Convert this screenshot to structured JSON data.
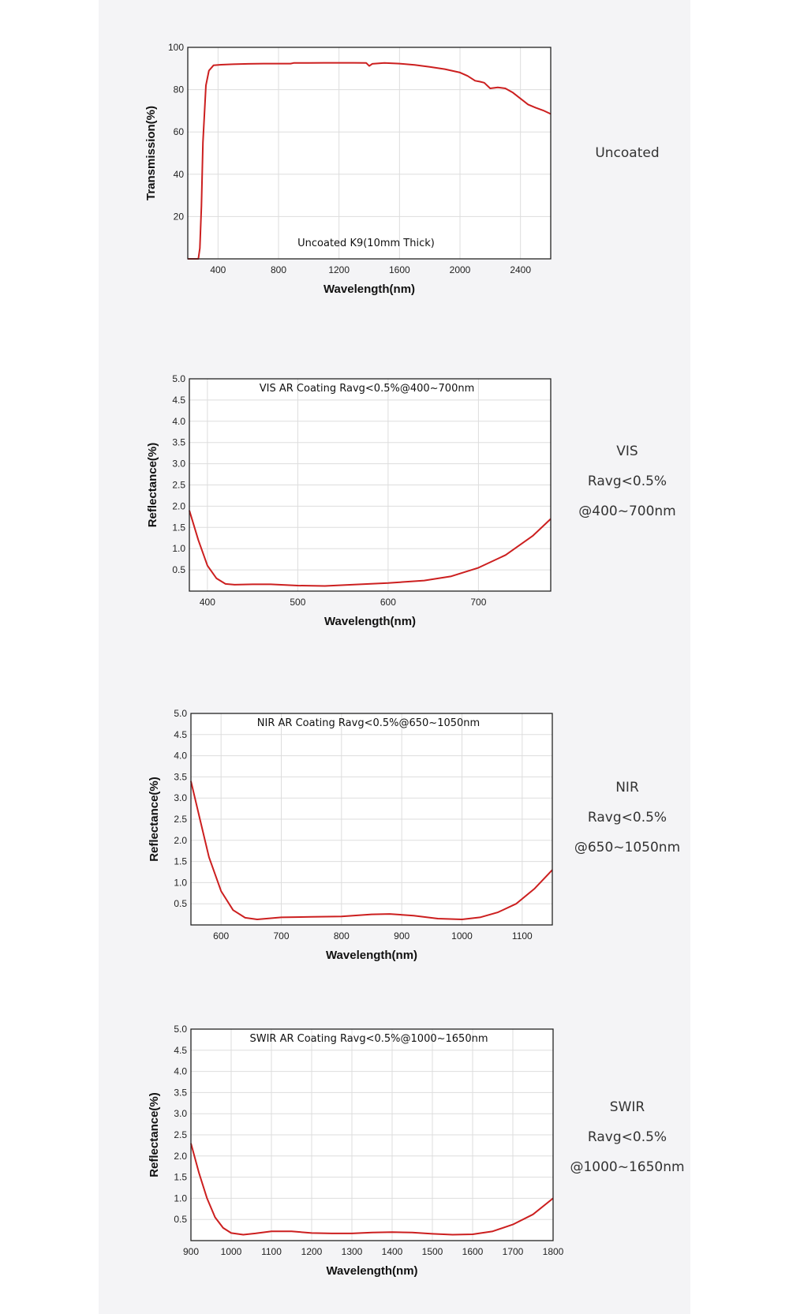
{
  "chart_data": [
    {
      "type": "line",
      "title": "Uncoated K9(10mm Thick)",
      "xlabel": "Wavelength(nm)",
      "ylabel": "Transmission(%)",
      "xlim": [
        200,
        2600
      ],
      "ylim": [
        0,
        100
      ],
      "xticks": [
        400,
        800,
        1200,
        1600,
        2000,
        2400
      ],
      "yticks": [
        20,
        40,
        60,
        80,
        100
      ],
      "grid": true,
      "side_label": [
        "Uncoated"
      ],
      "series": [
        {
          "color": "#cc1f1f",
          "x": [
            200,
            270,
            280,
            290,
            300,
            320,
            340,
            370,
            420,
            500,
            600,
            700,
            800,
            880,
            900,
            1000,
            1100,
            1200,
            1300,
            1380,
            1400,
            1420,
            1500,
            1600,
            1700,
            1800,
            1900,
            2000,
            2050,
            2100,
            2130,
            2160,
            2200,
            2250,
            2300,
            2350,
            2400,
            2450,
            2500,
            2550,
            2600
          ],
          "y": [
            0,
            0,
            5,
            25,
            55,
            82,
            89,
            91.5,
            91.8,
            92,
            92.2,
            92.3,
            92.3,
            92.3,
            92.6,
            92.6,
            92.7,
            92.7,
            92.7,
            92.6,
            91.2,
            92.2,
            92.6,
            92.3,
            91.7,
            90.8,
            89.7,
            88.1,
            86.5,
            84.2,
            83.8,
            83.3,
            80.6,
            81.1,
            80.6,
            78.6,
            75.8,
            73.0,
            71.5,
            70.2,
            68.5
          ]
        }
      ]
    },
    {
      "type": "line",
      "title": "VIS AR Coating Ravg<0.5%@400~700nm",
      "xlabel": "Wavelength(nm)",
      "ylabel": "Reflectance(%)",
      "xlim": [
        380,
        780
      ],
      "ylim": [
        0,
        5.0
      ],
      "xticks": [
        400,
        500,
        600,
        700
      ],
      "yticks": [
        "0.5",
        "1.0",
        "1.5",
        "2.0",
        "2.5",
        "3.0",
        "3.5",
        "4.0",
        "4.5",
        "5.0"
      ],
      "grid": true,
      "side_label": [
        "VIS",
        "Ravg<0.5%",
        "@400~700nm"
      ],
      "series": [
        {
          "color": "#cc1f1f",
          "x": [
            380,
            390,
            400,
            410,
            420,
            430,
            450,
            470,
            500,
            530,
            560,
            600,
            640,
            670,
            700,
            730,
            760,
            780
          ],
          "y": [
            1.9,
            1.2,
            0.6,
            0.3,
            0.17,
            0.15,
            0.16,
            0.16,
            0.13,
            0.12,
            0.15,
            0.19,
            0.25,
            0.35,
            0.55,
            0.85,
            1.3,
            1.7
          ]
        }
      ]
    },
    {
      "type": "line",
      "title": "NIR AR Coating Ravg<0.5%@650~1050nm",
      "xlabel": "Wavelength(nm)",
      "ylabel": "Reflectance(%)",
      "xlim": [
        550,
        1150
      ],
      "ylim": [
        0,
        5.0
      ],
      "xticks": [
        600,
        700,
        800,
        900,
        1000,
        1100
      ],
      "yticks": [
        "0.5",
        "1.0",
        "1.5",
        "2.0",
        "2.5",
        "3.0",
        "3.5",
        "4.0",
        "4.5",
        "5.0"
      ],
      "grid": true,
      "side_label": [
        "NIR",
        "Ravg<0.5%",
        "@650~1050nm"
      ],
      "series": [
        {
          "color": "#cc1f1f",
          "x": [
            550,
            565,
            580,
            600,
            620,
            640,
            660,
            700,
            750,
            800,
            850,
            880,
            920,
            960,
            1000,
            1030,
            1060,
            1090,
            1120,
            1150
          ],
          "y": [
            3.4,
            2.5,
            1.6,
            0.8,
            0.35,
            0.17,
            0.13,
            0.18,
            0.19,
            0.2,
            0.25,
            0.26,
            0.22,
            0.15,
            0.13,
            0.18,
            0.3,
            0.5,
            0.85,
            1.3
          ]
        }
      ]
    },
    {
      "type": "line",
      "title": "SWIR AR Coating Ravg<0.5%@1000~1650nm",
      "xlabel": "Wavelength(nm)",
      "ylabel": "Reflectance(%)",
      "xlim": [
        900,
        1800
      ],
      "ylim": [
        0,
        5.0
      ],
      "xticks": [
        900,
        1000,
        1100,
        1200,
        1300,
        1400,
        1500,
        1600,
        1700,
        1800
      ],
      "yticks": [
        "0.5",
        "1.0",
        "1.5",
        "2.0",
        "2.5",
        "3.0",
        "3.5",
        "4.0",
        "4.5",
        "5.0"
      ],
      "grid": true,
      "side_label": [
        "SWIR",
        "Ravg<0.5%",
        "@1000~1650nm"
      ],
      "series": [
        {
          "color": "#cc1f1f",
          "x": [
            900,
            920,
            940,
            960,
            980,
            1000,
            1030,
            1060,
            1100,
            1150,
            1200,
            1250,
            1300,
            1350,
            1400,
            1450,
            1500,
            1550,
            1600,
            1650,
            1700,
            1750,
            1800
          ],
          "y": [
            2.3,
            1.6,
            1.0,
            0.55,
            0.3,
            0.18,
            0.14,
            0.17,
            0.22,
            0.22,
            0.18,
            0.17,
            0.17,
            0.19,
            0.2,
            0.19,
            0.16,
            0.14,
            0.15,
            0.22,
            0.38,
            0.62,
            1.0
          ]
        }
      ]
    }
  ]
}
